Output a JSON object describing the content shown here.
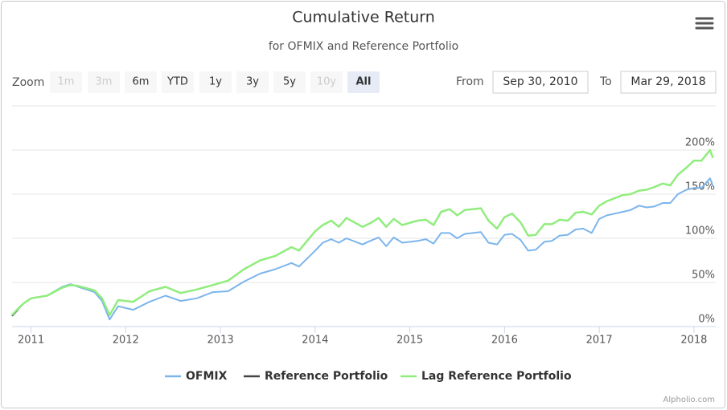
{
  "chart_data": {
    "type": "line",
    "title": "Cumulative Return",
    "subtitle": "for OFMIX and Reference Portfolio",
    "range_selector": {
      "zoom_label": "Zoom",
      "buttons": [
        {
          "label": "1m",
          "state": "disabled"
        },
        {
          "label": "3m",
          "state": "disabled"
        },
        {
          "label": "6m",
          "state": "enabled"
        },
        {
          "label": "YTD",
          "state": "enabled"
        },
        {
          "label": "1y",
          "state": "enabled"
        },
        {
          "label": "3y",
          "state": "enabled"
        },
        {
          "label": "5y",
          "state": "enabled"
        },
        {
          "label": "10y",
          "state": "disabled"
        },
        {
          "label": "All",
          "state": "selected"
        }
      ],
      "from_label": "From",
      "from": "Sep 30, 2010",
      "to_label": "To",
      "to": "Mar 29, 2018"
    },
    "x": [
      2010.8,
      2010.86,
      2010.92,
      2011.0,
      2011.17,
      2011.33,
      2011.42,
      2011.5,
      2011.67,
      2011.75,
      2011.83,
      2011.92,
      2012.08,
      2012.25,
      2012.42,
      2012.58,
      2012.75,
      2012.92,
      2013.08,
      2013.25,
      2013.42,
      2013.58,
      2013.75,
      2013.83,
      2014.0,
      2014.08,
      2014.17,
      2014.25,
      2014.33,
      2014.5,
      2014.58,
      2014.67,
      2014.75,
      2014.83,
      2014.92,
      2015.08,
      2015.17,
      2015.25,
      2015.33,
      2015.42,
      2015.5,
      2015.58,
      2015.75,
      2015.83,
      2015.92,
      2016.0,
      2016.08,
      2016.17,
      2016.25,
      2016.33,
      2016.42,
      2016.5,
      2016.58,
      2016.67,
      2016.75,
      2016.83,
      2016.92,
      2017.0,
      2017.08,
      2017.25,
      2017.33,
      2017.42,
      2017.5,
      2017.58,
      2017.67,
      2017.75,
      2017.83,
      2017.92,
      2018.0,
      2018.08,
      2018.17,
      2018.2
    ],
    "series": [
      {
        "name": "OFMIX",
        "color": "#7cb5ec",
        "values": [
          12,
          19,
          26,
          32,
          35,
          45,
          48,
          45,
          39,
          29,
          8,
          23,
          19,
          28,
          35,
          29,
          32,
          39,
          40,
          51,
          60,
          65,
          72,
          68,
          86,
          95,
          99,
          95,
          100,
          93,
          97,
          101,
          91,
          101,
          95,
          97,
          99,
          94,
          106,
          106,
          100,
          105,
          107,
          95,
          93,
          104,
          105,
          98,
          86,
          87,
          96,
          97,
          103,
          104,
          110,
          111,
          106,
          122,
          126,
          130,
          132,
          137,
          135,
          136,
          140,
          140,
          150,
          155,
          157,
          157,
          168,
          159
        ]
      },
      {
        "name": "Reference Portfolio",
        "color": "#434348",
        "values": [
          12,
          19,
          null,
          null,
          null,
          null,
          null,
          null,
          null,
          null,
          null,
          null,
          null,
          null,
          null,
          null,
          null,
          null,
          null,
          null,
          null,
          null,
          null,
          null,
          null,
          null,
          null,
          null,
          null,
          null,
          null,
          null,
          null,
          null,
          null,
          null,
          null,
          null,
          null,
          null,
          null,
          null,
          null,
          null,
          null,
          null,
          null,
          null,
          null,
          null,
          null,
          null,
          null,
          null,
          null,
          null,
          null,
          null,
          null,
          null,
          null,
          null,
          null,
          null,
          null,
          null,
          null,
          null,
          null,
          null,
          null,
          null
        ]
      },
      {
        "name": "Lag Reference Portfolio",
        "color": "#90ed7d",
        "values": [
          13,
          20,
          26,
          32,
          35,
          44,
          47,
          46,
          41,
          32,
          13,
          30,
          28,
          40,
          45,
          38,
          42,
          47,
          52,
          65,
          75,
          80,
          90,
          86,
          108,
          115,
          120,
          113,
          123,
          113,
          117,
          123,
          113,
          122,
          115,
          120,
          121,
          115,
          130,
          133,
          126,
          132,
          134,
          120,
          111,
          124,
          128,
          118,
          103,
          104,
          116,
          116,
          121,
          120,
          129,
          130,
          127,
          137,
          142,
          149,
          150,
          154,
          155,
          158,
          162,
          160,
          172,
          180,
          188,
          188,
          200,
          191
        ]
      }
    ],
    "xlim": [
      2010.8,
      2018.23
    ],
    "xticks": [
      2011,
      2012,
      2013,
      2014,
      2015,
      2016,
      2017,
      2018
    ],
    "ylim": [
      0,
      250
    ],
    "yticks": [
      {
        "value": 0,
        "label": "0%"
      },
      {
        "value": 50,
        "label": "50%"
      },
      {
        "value": 100,
        "label": "100%"
      },
      {
        "value": 150,
        "label": "150%"
      },
      {
        "value": 200,
        "label": "200%"
      }
    ],
    "grid": true,
    "legend": "bottom",
    "credits": "Alpholio.com"
  }
}
